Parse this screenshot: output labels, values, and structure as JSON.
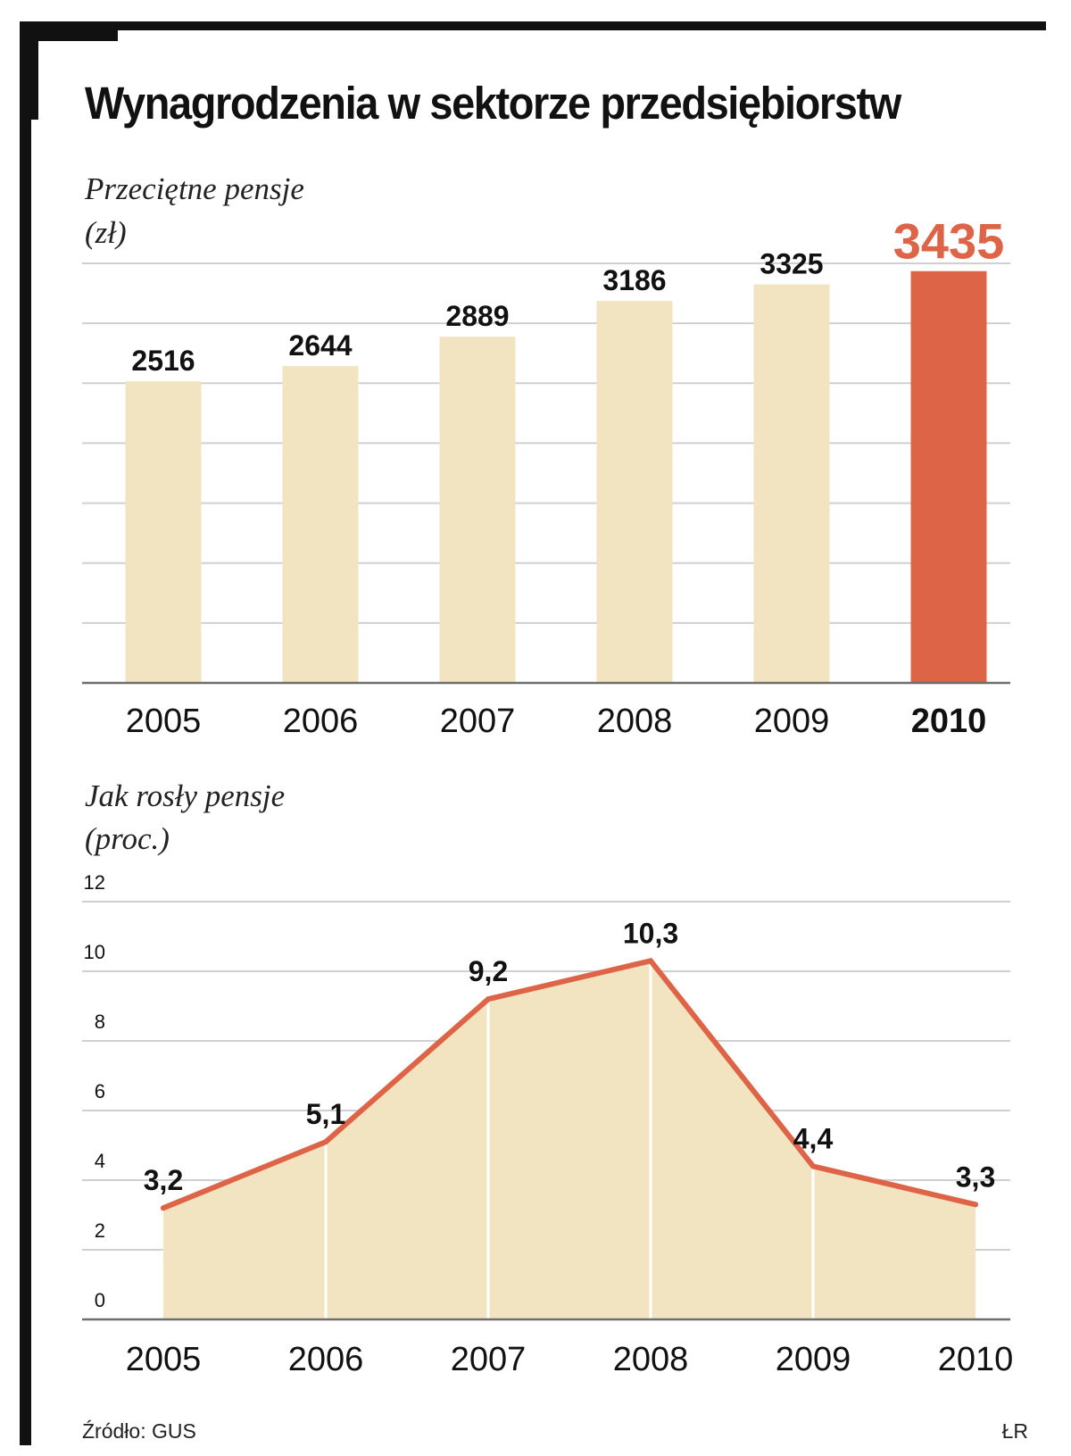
{
  "title": "Wynagrodzenia w sektorze przedsiębiorstw",
  "colors": {
    "bar": "#f2e4c1",
    "highlight": "#dd6447",
    "line": "#dd6447",
    "area": "#f2e4c1",
    "grid": "#d0d0d0",
    "axis": "#6e6e6e",
    "text": "#111111"
  },
  "chart_data": [
    {
      "type": "bar",
      "subtitle": [
        "Przeciętne pensje",
        "(zł)"
      ],
      "categories": [
        "2005",
        "2006",
        "2007",
        "2008",
        "2009",
        "2010"
      ],
      "values": [
        2516,
        2644,
        2889,
        3186,
        3325,
        3435
      ],
      "value_labels": [
        "2516",
        "2644",
        "2889",
        "3186",
        "3325",
        "3435"
      ],
      "highlight_index": 5,
      "ylim": [
        0,
        3500
      ],
      "grid": true
    },
    {
      "type": "area",
      "subtitle": [
        "Jak rosły pensje",
        "(proc.)"
      ],
      "categories": [
        "2005",
        "2006",
        "2007",
        "2008",
        "2009",
        "2010"
      ],
      "values": [
        3.2,
        5.1,
        9.2,
        10.3,
        4.4,
        3.3
      ],
      "value_labels": [
        "3,2",
        "5,1",
        "9,2",
        "10,3",
        "4,4",
        "3,3"
      ],
      "yticks": [
        "0",
        "2",
        "4",
        "6",
        "8",
        "10",
        "12"
      ],
      "ylim": [
        0,
        12
      ],
      "grid": true
    }
  ],
  "footer": {
    "source": "Źródło: GUS",
    "author": "ŁR"
  }
}
